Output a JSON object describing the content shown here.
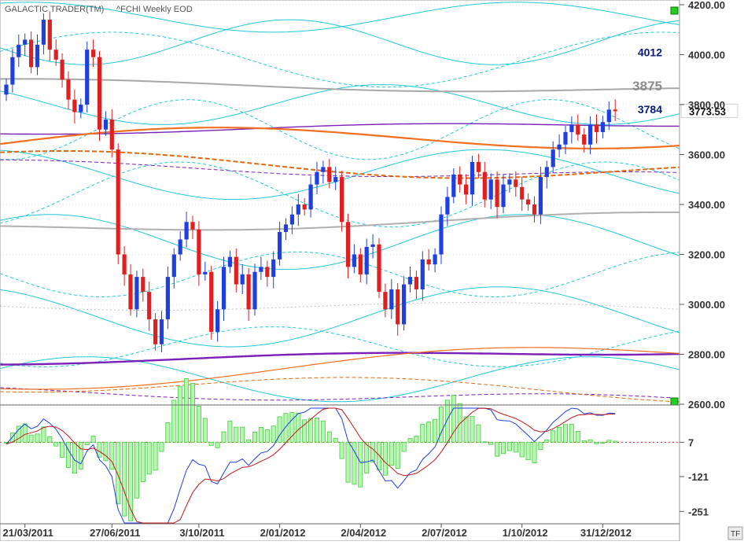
{
  "header": {
    "app_title": "GALACTIC TRADER(TM)",
    "symbol_label": "^FCHI Weekly EOD"
  },
  "corner_tag": "TF",
  "chart_data": [
    {
      "type": "candlestick",
      "title": "",
      "ylim": [
        2600,
        4200
      ],
      "y_ticks": [
        {
          "value": 2600,
          "label": "2600.00"
        },
        {
          "value": 2800,
          "label": "2800.00"
        },
        {
          "value": 3000,
          "label": "3000.00"
        },
        {
          "value": 3200,
          "label": "3200.00"
        },
        {
          "value": 3400,
          "label": "3400.00"
        },
        {
          "value": 3600,
          "label": "3600.00"
        },
        {
          "value": 3800,
          "label": "3800.00"
        },
        {
          "value": 4000,
          "label": "4000.00"
        },
        {
          "value": 4200,
          "label": "4200.00"
        }
      ],
      "x_ticks": [
        {
          "index": 3,
          "label": "21/03/2011"
        },
        {
          "index": 17,
          "label": "27/06/2011"
        },
        {
          "index": 31,
          "label": "3/10/2011"
        },
        {
          "index": 44,
          "label": "2/01/2012"
        },
        {
          "index": 57,
          "label": "2/04/2012"
        },
        {
          "index": 70,
          "label": "2/07/2012"
        },
        {
          "index": 83,
          "label": "1/10/2012"
        },
        {
          "index": 96,
          "label": "31/12/2012"
        }
      ],
      "last_close_label": "3773.53",
      "last_close": 3773.53,
      "level_labels": [
        {
          "label": "4012",
          "value": 4012,
          "color": "#0a1a7a"
        },
        {
          "label": "3875",
          "value": 3875,
          "color": "#8c8c8c"
        },
        {
          "label": "3784",
          "value": 3784,
          "color": "#0a1a7a"
        }
      ],
      "colors": {
        "up": "#1f3fdf",
        "down": "#e02020",
        "grid": "#c8c8c8"
      },
      "closes": [
        3880,
        3990,
        4040,
        4060,
        3950,
        4040,
        4140,
        4020,
        3980,
        3900,
        3820,
        3770,
        3800,
        4020,
        3990,
        3700,
        3740,
        3620,
        3200,
        3120,
        2980,
        3110,
        3050,
        2940,
        2840,
        2940,
        3110,
        3200,
        3260,
        3330,
        3300,
        3120,
        3130,
        2890,
        2980,
        3150,
        3190,
        3080,
        3120,
        2980,
        3130,
        3150,
        3110,
        3180,
        3290,
        3320,
        3360,
        3400,
        3380,
        3480,
        3530,
        3550,
        3490,
        3510,
        3330,
        3150,
        3200,
        3120,
        3230,
        3240,
        3050,
        2980,
        3060,
        2920,
        3080,
        3110,
        3060,
        3180,
        3160,
        3200,
        3360,
        3430,
        3520,
        3480,
        3440,
        3570,
        3530,
        3420,
        3500,
        3390,
        3480,
        3500,
        3470,
        3420,
        3400,
        3360,
        3510,
        3550,
        3620,
        3640,
        3690,
        3720,
        3680,
        3640,
        3720,
        3690,
        3730,
        3780,
        3773.53
      ]
    },
    {
      "type": "macd",
      "title": "",
      "ylim": [
        -300,
        140
      ],
      "y_ticks": [
        {
          "value": 7,
          "label": "7"
        },
        {
          "value": -121,
          "label": "-121"
        },
        {
          "value": -251,
          "label": "-251"
        }
      ],
      "colors": {
        "macd_line": "#1f3fdf",
        "signal_line": "#c01818",
        "histogram": "#40d040"
      }
    }
  ]
}
